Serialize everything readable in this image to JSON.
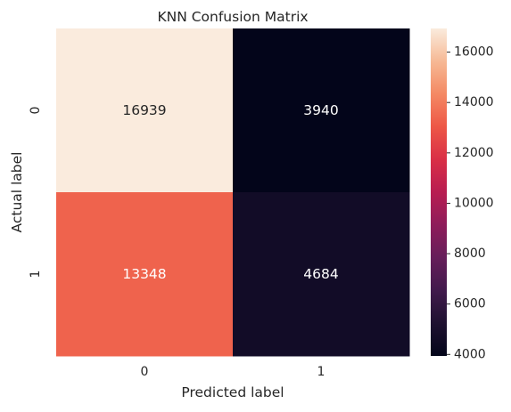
{
  "chart_data": {
    "type": "heatmap",
    "title": "KNN Confusion Matrix",
    "xlabel": "Predicted label",
    "ylabel": "Actual label",
    "x_categories": [
      "0",
      "1"
    ],
    "y_categories": [
      "0",
      "1"
    ],
    "values": [
      [
        16939,
        3940
      ],
      [
        13348,
        4684
      ]
    ],
    "colormap": "rocket",
    "colorbar": {
      "range": [
        3940,
        16939
      ],
      "ticks": [
        "4000",
        "6000",
        "8000",
        "10000",
        "12000",
        "14000",
        "16000"
      ]
    },
    "grid": false,
    "legend": "colorbar-right"
  }
}
